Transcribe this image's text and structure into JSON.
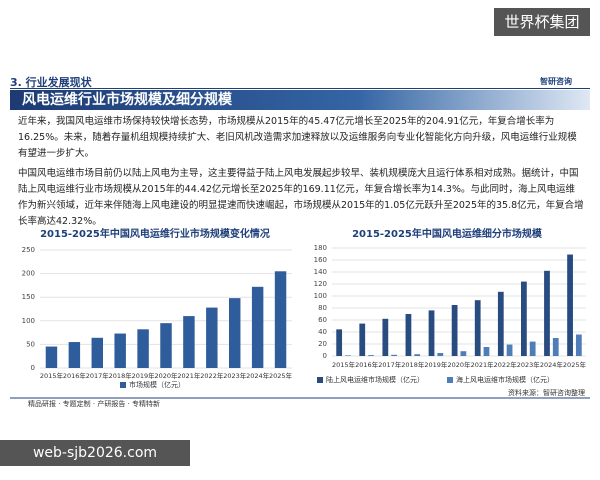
{
  "watermark_top": "世界杯集团",
  "section": "3. 行业发展现状",
  "logo": "智研咨询",
  "title": "风电运维行业市场规模及细分规模",
  "paragraphs": [
    "近年来，我国风电运维市场保持较快增长态势，市场规模从2015年的45.47亿元增长至2025年的204.91亿元，年复合增长率为16.25%。未来，随着存量机组规模持续扩大、老旧风机改造需求加速释放以及运维服务向专业化智能化方向升级，风电运维行业规模有望进一步扩大。",
    "中国风电运维市场目前仍以陆上风电为主导，这主要得益于陆上风电发展起步较早、装机规模庞大且运行体系相对成熟。据统计，中国陆上风电运维行业市场规模从2015年的44.42亿元增长至2025年的169.11亿元，年复合增长率为14.3%。与此同时，海上风电运维作为新兴领域，近年来伴随海上风电建设的明显提速而快速崛起，市场规模从2015年的1.05亿元跃升至2025年的35.8亿元，年复合增长率高达42.32%。"
  ],
  "chart_data": [
    {
      "type": "bar",
      "title": "2015-2025年中国风电运维行业市场规模变化情况",
      "categories": [
        "2015年",
        "2016年",
        "2017年",
        "2018年",
        "2019年",
        "2020年",
        "2021年",
        "2022年",
        "2023年",
        "2024年",
        "2025年"
      ],
      "series": [
        {
          "name": "市场规模（亿元）",
          "color": "#2f5d9b",
          "values": [
            45.47,
            55,
            64,
            73,
            82,
            95,
            110,
            128,
            148,
            172,
            204.91
          ]
        }
      ],
      "ylim": [
        0,
        250
      ],
      "yticks": [
        0,
        50,
        100,
        150,
        200,
        250
      ],
      "grid": true
    },
    {
      "type": "bar",
      "title": "2015-2025年中国风电运维细分市场规模",
      "categories": [
        "2015年",
        "2016年",
        "2017年",
        "2018年",
        "2019年",
        "2020年",
        "2021年",
        "2022年",
        "2023年",
        "2024年",
        "2025年"
      ],
      "series": [
        {
          "name": "陆上风电运维市场规模（亿元）",
          "color": "#284b80",
          "values": [
            44.42,
            54,
            62,
            70,
            76,
            85,
            93,
            107,
            124,
            142,
            169.11
          ]
        },
        {
          "name": "海上风电运维市场规模（亿元）",
          "color": "#4f7db8",
          "values": [
            1.05,
            1.5,
            2,
            3,
            5,
            8,
            15,
            19,
            24,
            30,
            35.8
          ]
        }
      ],
      "ylim": [
        0,
        180
      ],
      "yticks": [
        0,
        20,
        40,
        60,
        80,
        100,
        120,
        140,
        160,
        180
      ],
      "grid": true
    }
  ],
  "source": "资料来源：智研咨询整理",
  "footer": "精品研报 · 专题定制 · 产研报告 · 专精特新",
  "watermark_bottom": "web-sjb2026.com"
}
